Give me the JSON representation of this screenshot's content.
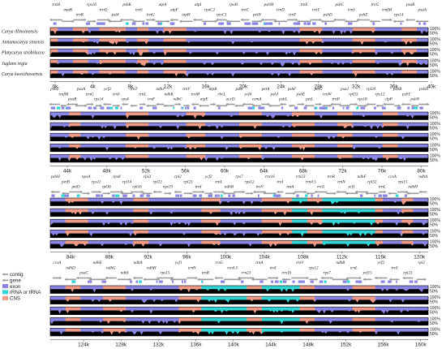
{
  "species": [
    "Carya illinoinensis",
    "Annamocarya sinensis",
    "Platycarya strobilacea",
    "Juglans regia",
    "Carya kweichowensis"
  ],
  "percent_labels": [
    "100%",
    "50%"
  ],
  "legend": [
    {
      "label": "contig",
      "color": "#9a9a9a",
      "kind": "arrow"
    },
    {
      "label": "gene",
      "color": "#9a9a9a",
      "kind": "arrow"
    },
    {
      "label": "exon",
      "color": "#8a86e6",
      "kind": "box"
    },
    {
      "label": "rRNA or tRNA",
      "color": "#33d6d6",
      "kind": "box"
    },
    {
      "label": "CNS",
      "color": "#f09a88",
      "kind": "box"
    }
  ],
  "colors": {
    "exon": "#8a86e6",
    "rna": "#33d6d6",
    "cns": "#f09a88",
    "gene_arrow": "#9a9a9a",
    "track_fill": "#000000"
  },
  "panels": [
    {
      "ticks": [
        "0k",
        "4k",
        "8k",
        "12k",
        "16k",
        "20k",
        "24k",
        "28k",
        "32k",
        "36k",
        "40k"
      ],
      "genes": [
        "trnH",
        "matK",
        "trnK",
        "rps16",
        "trnQ",
        "psbI",
        "psbK",
        "trnS",
        "trnG",
        "atpA",
        "atpF",
        "atpH",
        "atpI",
        "rpoC2",
        "rpoC1",
        "rpoB",
        "trnC",
        "petN",
        "psbM",
        "trnD",
        "trnY",
        "trnE",
        "trnT",
        "psbD",
        "psbC",
        "trnS",
        "psbZ",
        "trnG",
        "trnfM",
        "rps14",
        "psaB",
        "psaA"
      ]
    },
    {
      "ticks": [
        "44k",
        "48k",
        "52k",
        "56k",
        "60k",
        "64k",
        "68k",
        "72k",
        "76k",
        "80k"
      ],
      "genes": [
        "psbZ",
        "trnfM",
        "psaB",
        "psaA",
        "trnG",
        "rps14",
        "ycf3",
        "trnS",
        "rps4",
        "trnT",
        "trnL",
        "trnF",
        "ndhJ",
        "ndhK",
        "ndhC",
        "trnV",
        "trnM",
        "atpE",
        "atpB",
        "rbcL",
        "accD",
        "psaI",
        "ycf4",
        "cemA",
        "petA",
        "psbJ",
        "psbL",
        "psbF",
        "psbE",
        "petL",
        "petG",
        "trnW",
        "trnP",
        "psaJ",
        "rpl33",
        "rps18",
        "rpl20",
        "rps12",
        "clpP",
        "psbB",
        "psbT",
        "psbN",
        "psbH"
      ]
    },
    {
      "ticks": [
        "84k",
        "88k",
        "92k",
        "96k",
        "100k",
        "104k",
        "108k",
        "112k",
        "116k",
        "120k"
      ],
      "genes": [
        "psbH",
        "petB",
        "petD",
        "rpoA",
        "rps11",
        "rpl36",
        "rps8",
        "rpl14",
        "rpl16",
        "rps3",
        "rpl22",
        "rps19",
        "rpl2",
        "rpl23",
        "trnI",
        "ycf2",
        "trnL",
        "ndhB",
        "rps7",
        "rps12",
        "trnV",
        "rrn16",
        "trnI",
        "trnA",
        "rrn23",
        "rrn4.5",
        "rrn5",
        "trnR",
        "trnN",
        "ycf1",
        "ndhF",
        "rpl32",
        "trnL",
        "ccsA",
        "rps15",
        "ndhH",
        "ndhA"
      ]
    },
    {
      "ticks": [
        "124k",
        "128k",
        "132k",
        "136k",
        "140k",
        "144k",
        "148k",
        "152k",
        "156k",
        "160k"
      ],
      "genes": [
        "ccsA",
        "ndhD",
        "psaC",
        "ndhE",
        "ndhG",
        "ndhI",
        "ndhA",
        "ndhH",
        "rps15",
        "ycf1",
        "trnN",
        "trnR",
        "rrn5",
        "rrn4.5",
        "rrn23",
        "trnA",
        "trnI",
        "rrn16",
        "trnV",
        "rps12",
        "rps7",
        "ndhB",
        "trnL",
        "ycf15",
        "ycf2",
        "trnI",
        "rpl23",
        "rpl2"
      ]
    }
  ]
}
